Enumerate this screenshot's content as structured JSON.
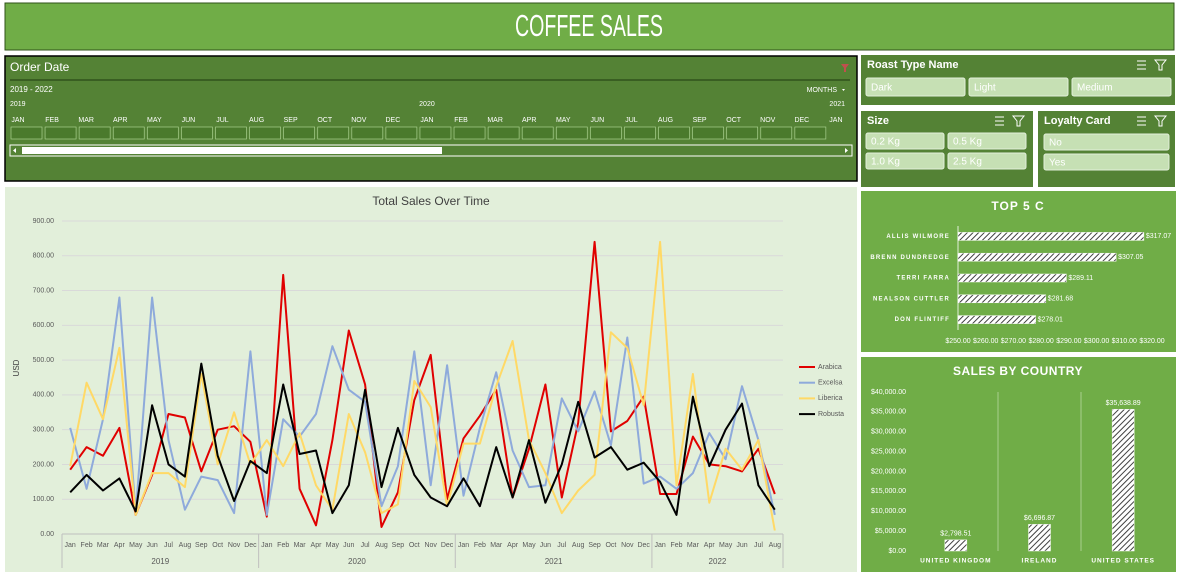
{
  "header": {
    "title": "COFFEE SALES"
  },
  "timeline": {
    "title": "Order Date",
    "range": "2019 - 2022",
    "level": "MONTHS",
    "years": [
      "2019",
      "2020",
      "2021"
    ],
    "months": [
      "JAN",
      "FEB",
      "MAR",
      "APR",
      "MAY",
      "JUN",
      "JUL",
      "AUG",
      "SEP",
      "OCT",
      "NOV",
      "DEC",
      "JAN",
      "FEB",
      "MAR",
      "APR",
      "MAY",
      "JUN",
      "JUL",
      "AUG",
      "SEP",
      "OCT",
      "NOV",
      "DEC",
      "JAN"
    ]
  },
  "slicers": [
    {
      "title": "Roast Type Name",
      "items": [
        "Dark",
        "Light",
        "Medium"
      ]
    },
    {
      "title": "Size",
      "items": [
        "0.2 Kg",
        "0.5 Kg",
        "1.0 Kg",
        "2.5 Kg"
      ]
    },
    {
      "title": "Loyalty Card",
      "items": [
        "No",
        "Yes"
      ]
    }
  ],
  "chart_data": [
    {
      "type": "line",
      "title": "Total Sales Over Time",
      "y_label": "USD",
      "categories": [
        "Jan",
        "Feb",
        "Mar",
        "Apr",
        "May",
        "Jun",
        "Jul",
        "Aug",
        "Sep",
        "Oct",
        "Nov",
        "Dec",
        "Jan",
        "Feb",
        "Mar",
        "Apr",
        "May",
        "Jun",
        "Jul",
        "Aug",
        "Sep",
        "Oct",
        "Nov",
        "Dec",
        "Jan",
        "Feb",
        "Mar",
        "Apr",
        "May",
        "Jun",
        "Jul",
        "Aug",
        "Sep",
        "Oct",
        "Nov",
        "Dec",
        "Jan",
        "Feb",
        "Mar",
        "Apr",
        "May",
        "Jun",
        "Jul",
        "Aug"
      ],
      "year_groups": [
        "2019",
        "2020",
        "2021",
        "2022"
      ],
      "series": [
        {
          "name": "Arabica",
          "color": "#e00000",
          "values": [
            185,
            250,
            225,
            305,
            55,
            170,
            345,
            335,
            180,
            300,
            310,
            265,
            50,
            745,
            130,
            25,
            270,
            585,
            430,
            20,
            120,
            385,
            515,
            100,
            275,
            340,
            415,
            105,
            245,
            430,
            105,
            320,
            840,
            295,
            325,
            395,
            115,
            115,
            280,
            200,
            195,
            180,
            245,
            115
          ]
        },
        {
          "name": "Excelsa",
          "color": "#8eaadb",
          "values": [
            305,
            130,
            330,
            680,
            60,
            680,
            270,
            70,
            165,
            155,
            60,
            525,
            55,
            330,
            280,
            345,
            540,
            415,
            380,
            80,
            195,
            525,
            140,
            485,
            110,
            305,
            465,
            240,
            135,
            140,
            390,
            295,
            410,
            255,
            565,
            145,
            165,
            130,
            175,
            290,
            215,
            425,
            270,
            55
          ]
        },
        {
          "name": "Liberica",
          "color": "#ffd966",
          "values": [
            195,
            435,
            330,
            535,
            55,
            175,
            175,
            135,
            460,
            200,
            350,
            200,
            270,
            195,
            290,
            140,
            70,
            345,
            235,
            60,
            85,
            440,
            365,
            80,
            260,
            260,
            425,
            555,
            270,
            175,
            60,
            125,
            170,
            580,
            535,
            370,
            840,
            140,
            460,
            90,
            245,
            185,
            270,
            10
          ]
        },
        {
          "name": "Robusta",
          "color": "#000000",
          "values": [
            120,
            170,
            125,
            160,
            65,
            370,
            200,
            165,
            490,
            225,
            95,
            210,
            175,
            430,
            230,
            240,
            60,
            140,
            415,
            135,
            305,
            170,
            105,
            80,
            160,
            80,
            250,
            105,
            270,
            90,
            200,
            380,
            220,
            250,
            185,
            205,
            150,
            55,
            395,
            195,
            300,
            375,
            140,
            70
          ]
        }
      ],
      "ylim": [
        0,
        900
      ],
      "yticks": [
        {
          "value": 0,
          "label": "0.00"
        },
        {
          "value": 100,
          "label": "100.00"
        },
        {
          "value": 200,
          "label": "200.00"
        },
        {
          "value": 300,
          "label": "300.00"
        },
        {
          "value": 400,
          "label": "400.00"
        },
        {
          "value": 500,
          "label": "500.00"
        },
        {
          "value": 600,
          "label": "600.00"
        },
        {
          "value": 700,
          "label": "700.00"
        },
        {
          "value": 800,
          "label": "800.00"
        },
        {
          "value": 900,
          "label": "900.00"
        }
      ],
      "grid": true,
      "legend": "right"
    },
    {
      "type": "hbar",
      "title": "TOP 5 C",
      "categories": [
        "ALLIS WILMORE",
        "BRENN DUNDREDGE",
        "TERRI FARRA",
        "NEALSON CUTTLER",
        "DON FLINTIFF"
      ],
      "values": [
        317.07,
        307.05,
        289.11,
        281.68,
        278.01
      ],
      "value_labels": [
        "$317.07",
        "$307.05",
        "$289.11",
        "$281.68",
        "$278.01"
      ],
      "xlim": [
        250,
        320
      ],
      "xticks": [
        {
          "value": 250,
          "label": "$250.00"
        },
        {
          "value": 260,
          "label": "$260.00"
        },
        {
          "value": 270,
          "label": "$270.00"
        },
        {
          "value": 280,
          "label": "$280.00"
        },
        {
          "value": 290,
          "label": "$290.00"
        },
        {
          "value": 300,
          "label": "$300.00"
        },
        {
          "value": 310,
          "label": "$310.00"
        },
        {
          "value": 320,
          "label": "$320.00"
        }
      ],
      "color": "#404040",
      "grid": false
    },
    {
      "type": "bar",
      "title": "SALES BY COUNTRY",
      "categories": [
        "UNITED KINGDOM",
        "IRELAND",
        "UNITED STATES"
      ],
      "values": [
        2798.51,
        6696.87,
        35638.89
      ],
      "value_labels": [
        "$2,798.51",
        "$6,696.87",
        "$35,638.89"
      ],
      "ylim": [
        0,
        40000
      ],
      "yticks": [
        {
          "value": 0,
          "label": "$0.00"
        },
        {
          "value": 5000,
          "label": "$5,000.00"
        },
        {
          "value": 10000,
          "label": "$10,000.00"
        },
        {
          "value": 15000,
          "label": "$15,000.00"
        },
        {
          "value": 20000,
          "label": "$20,000.00"
        },
        {
          "value": 25000,
          "label": "$25,000.00"
        },
        {
          "value": 30000,
          "label": "$30,000.00"
        },
        {
          "value": 35000,
          "label": "$35,000.00"
        },
        {
          "value": 40000,
          "label": "$40,000.00"
        }
      ],
      "color": "#404040",
      "grid": false
    }
  ]
}
